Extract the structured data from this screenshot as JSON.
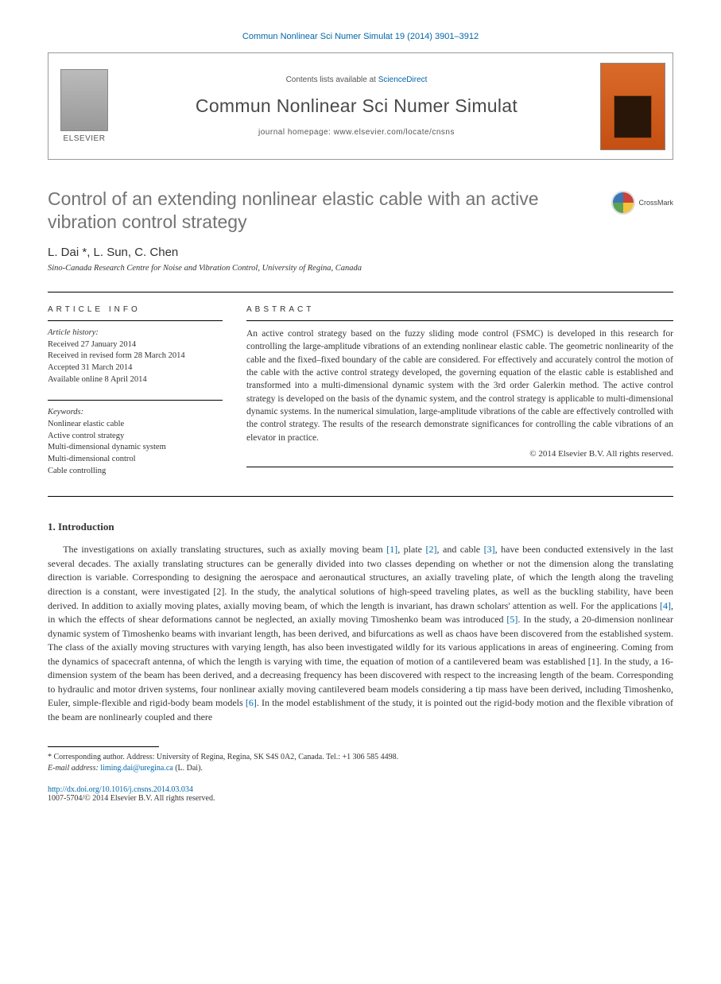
{
  "citation": "Commun Nonlinear Sci Numer Simulat 19 (2014) 3901–3912",
  "header": {
    "contents_prefix": "Contents lists available at ",
    "contents_link": "ScienceDirect",
    "journal": "Commun Nonlinear Sci Numer Simulat",
    "homepage": "journal homepage: www.elsevier.com/locate/cnsns",
    "publisher_logo": "ELSEVIER"
  },
  "crossmark": "CrossMark",
  "title": "Control of an extending nonlinear elastic cable with an active vibration control strategy",
  "authors": "L. Dai *, L. Sun, C. Chen",
  "affiliation": "Sino-Canada Research Centre for Noise and Vibration Control, University of Regina, Canada",
  "article_info": {
    "heading": "ARTICLE INFO",
    "history_label": "Article history:",
    "received": "Received 27 January 2014",
    "revised": "Received in revised form 28 March 2014",
    "accepted": "Accepted 31 March 2014",
    "online": "Available online 8 April 2014",
    "keywords_label": "Keywords:",
    "keywords": [
      "Nonlinear elastic cable",
      "Active control strategy",
      "Multi-dimensional dynamic system",
      "Multi-dimensional control",
      "Cable controlling"
    ]
  },
  "abstract": {
    "heading": "ABSTRACT",
    "text": "An active control strategy based on the fuzzy sliding mode control (FSMC) is developed in this research for controlling the large-amplitude vibrations of an extending nonlinear elastic cable. The geometric nonlinearity of the cable and the fixed–fixed boundary of the cable are considered. For effectively and accurately control the motion of the cable with the active control strategy developed, the governing equation of the elastic cable is established and transformed into a multi-dimensional dynamic system with the 3rd order Galerkin method. The active control strategy is developed on the basis of the dynamic system, and the control strategy is applicable to multi-dimensional dynamic systems. In the numerical simulation, large-amplitude vibrations of the cable are effectively controlled with the control strategy. The results of the research demonstrate significances for controlling the cable vibrations of an elevator in practice.",
    "copyright": "© 2014 Elsevier B.V. All rights reserved."
  },
  "section1": {
    "heading": "1. Introduction",
    "para": "The investigations on axially translating structures, such as axially moving beam [1], plate [2], and cable [3], have been conducted extensively in the last several decades. The axially translating structures can be generally divided into two classes depending on whether or not the dimension along the translating direction is variable. Corresponding to designing the aerospace and aeronautical structures, an axially traveling plate, of which the length along the traveling direction is a constant, were investigated [2]. In the study, the analytical solutions of high-speed traveling plates, as well as the buckling stability, have been derived. In addition to axially moving plates, axially moving beam, of which the length is invariant, has drawn scholars' attention as well. For the applications [4], in which the effects of shear deformations cannot be neglected, an axially moving Timoshenko beam was introduced [5]. In the study, a 20-dimension nonlinear dynamic system of Timoshenko beams with invariant length, has been derived, and bifurcations as well as chaos have been discovered from the established system. The class of the axially moving structures with varying length, has also been investigated wildly for its various applications in areas of engineering. Coming from the dynamics of spacecraft antenna, of which the length is varying with time, the equation of motion of a cantilevered beam was established [1]. In the study, a 16-dimension system of the beam has been derived, and a decreasing frequency has been discovered with respect to the increasing length of the beam. Corresponding to hydraulic and motor driven systems, four nonlinear axially moving cantilevered beam models considering a tip mass have been derived, including Timoshenko, Euler, simple-flexible and rigid-body beam models [6]. In the model establishment of the study, it is pointed out the rigid-body motion and the flexible vibration of the beam are nonlinearly coupled and there"
  },
  "footnote": {
    "corr": "* Corresponding author. Address: University of Regina, Regina, SK S4S 0A2, Canada. Tel.: +1 306 585 4498.",
    "email_label": "E-mail address: ",
    "email": "liming.dai@uregina.ca",
    "email_suffix": " (L. Dai)."
  },
  "doi": {
    "url": "http://dx.doi.org/10.1016/j.cnsns.2014.03.034",
    "issn": "1007-5704/© 2014 Elsevier B.V. All rights reserved."
  },
  "refs": {
    "r1": "[1]",
    "r2": "[2]",
    "r3": "[3]",
    "r4": "[4]",
    "r5": "[5]",
    "r6": "[6]"
  }
}
